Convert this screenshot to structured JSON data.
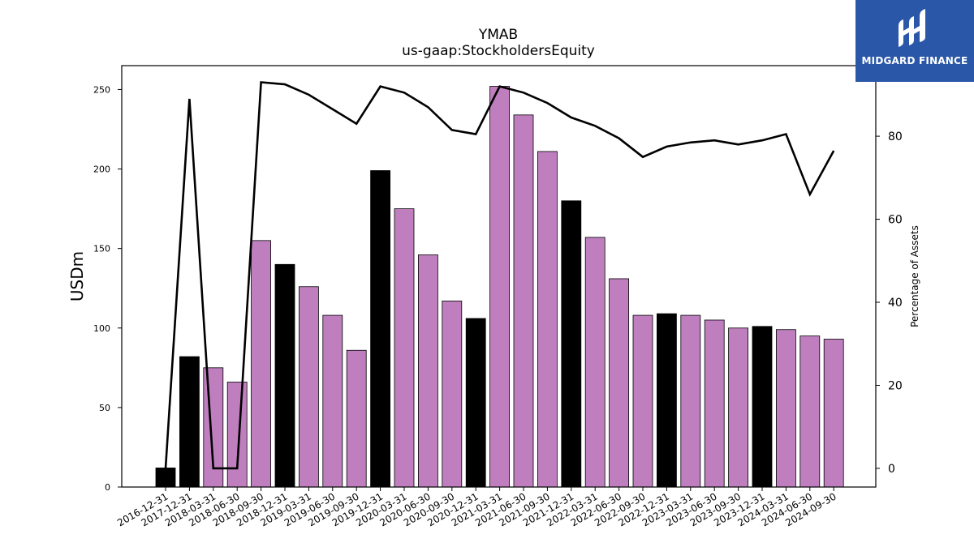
{
  "chart_data": {
    "type": "bar",
    "title": "YMAB",
    "subtitle": "us-gaap:StockholdersEquity",
    "ylabel": "USDm",
    "y2label": "Percentage of Assets",
    "ylim": [
      0,
      265
    ],
    "y2lim": [
      -4.5,
      97
    ],
    "yticks": [
      0,
      50,
      100,
      150,
      200,
      250
    ],
    "y2ticks": [
      0,
      20,
      40,
      60,
      80
    ],
    "categories": [
      "2016-12-31",
      "2017-12-31",
      "2018-03-31",
      "2018-06-30",
      "2018-09-30",
      "2018-12-31",
      "2019-03-31",
      "2019-06-30",
      "2019-09-30",
      "2019-12-31",
      "2020-03-31",
      "2020-06-30",
      "2020-09-30",
      "2020-12-31",
      "2021-03-31",
      "2021-06-30",
      "2021-09-30",
      "2021-12-31",
      "2022-03-31",
      "2022-06-30",
      "2022-09-30",
      "2022-12-31",
      "2023-03-31",
      "2023-06-30",
      "2023-09-30",
      "2023-12-31",
      "2024-03-31",
      "2024-06-30",
      "2024-09-30"
    ],
    "series": [
      {
        "type": "bar",
        "values": [
          12,
          82,
          75,
          66,
          155,
          140,
          126,
          108,
          86,
          199,
          175,
          146,
          117,
          106,
          252,
          234,
          211,
          180,
          157,
          131,
          108,
          109,
          108,
          105,
          100,
          101,
          99,
          95,
          93
        ],
        "colors": [
          "#000000",
          "#000000",
          "#bf7fbf",
          "#bf7fbf",
          "#bf7fbf",
          "#000000",
          "#bf7fbf",
          "#bf7fbf",
          "#bf7fbf",
          "#000000",
          "#bf7fbf",
          "#bf7fbf",
          "#bf7fbf",
          "#000000",
          "#bf7fbf",
          "#bf7fbf",
          "#bf7fbf",
          "#000000",
          "#bf7fbf",
          "#bf7fbf",
          "#bf7fbf",
          "#000000",
          "#bf7fbf",
          "#bf7fbf",
          "#bf7fbf",
          "#000000",
          "#bf7fbf",
          "#bf7fbf",
          "#bf7fbf"
        ]
      },
      {
        "type": "line",
        "axis": "right",
        "color": "#000000",
        "values": [
          0,
          89,
          0,
          0,
          93,
          92.5,
          90,
          86.5,
          83,
          92,
          90.5,
          87,
          81.5,
          80.5,
          92,
          90.5,
          88,
          84.5,
          82.5,
          79.5,
          75,
          77.5,
          78.5,
          79,
          78,
          79,
          80.5,
          66,
          76.5
        ]
      }
    ],
    "grid": false
  },
  "logo": {
    "text": "MIDGARD FINANCE",
    "background": "#2a57a8"
  }
}
